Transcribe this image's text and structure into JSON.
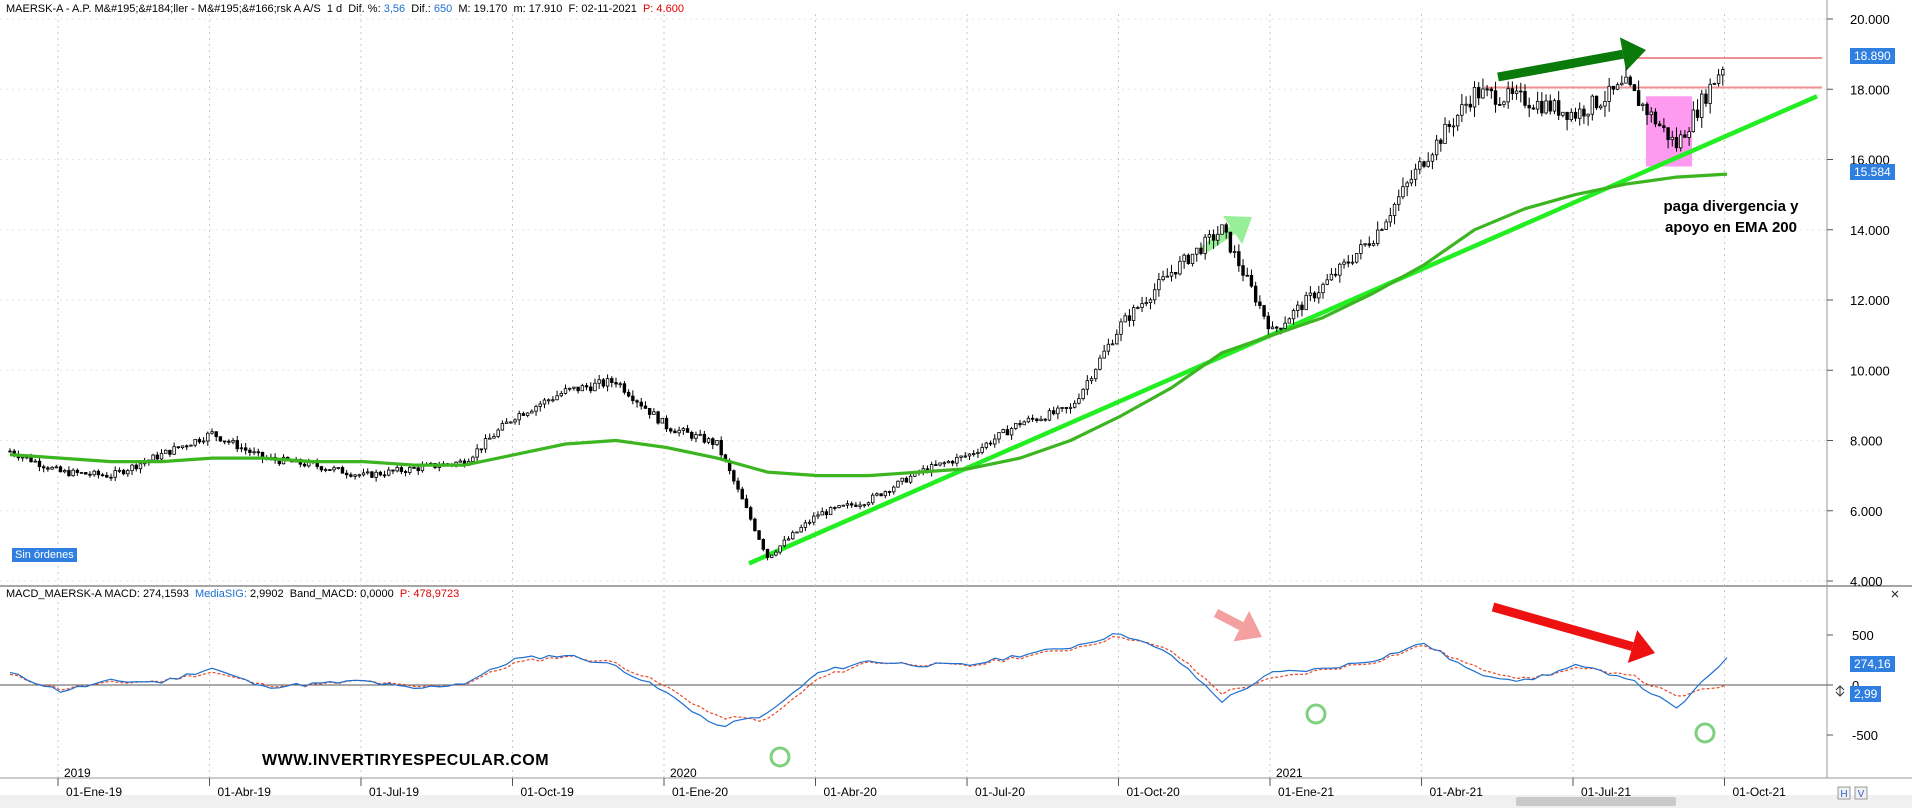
{
  "header": {
    "symbol": "MAERSK-A - A.P. M&#195;&#184;ller - M&#195;&#166;rsk A A/S",
    "interval": "1 d",
    "dif_pct_label": "Dif. %:",
    "dif_pct": "3,56",
    "dif_label": "Dif.:",
    "dif": "650",
    "max_label": "M:",
    "max": "19.170",
    "min_label": "m:",
    "min": "17.910",
    "date_label": "F:",
    "date": "02-11-2021",
    "p_label": "P:",
    "p": "4.600"
  },
  "macd_header": {
    "name": "MACD_MAERSK-A",
    "macd_label": "MACD:",
    "macd": "274,1593",
    "signal_label": "MediaSIG:",
    "signal": "2,9902",
    "band_label": "Band_MACD:",
    "band": "0,0000",
    "p_label": "P:",
    "p": "478,9723"
  },
  "price_tags": {
    "last": "18.890",
    "ema": "15.584"
  },
  "macd_tags": {
    "macd": "274,16",
    "signal": "2,99"
  },
  "status": {
    "orders": "Sin órdenes"
  },
  "annotation": {
    "line1": "paga divergencia y",
    "line2": "apoyo en EMA 200"
  },
  "watermark": "WWW.INVERTIRYESPECULAR.COM",
  "colors": {
    "price": "#000000",
    "ema": "#3cb521",
    "trend": "#22ee22",
    "resistance": "#f09090",
    "box": "#ff88ee",
    "arrow_dark": "#0a7a0a",
    "arrow_light": "#99ee99",
    "arrow_red": "#ee1111",
    "arrow_pink": "#f4a0a0",
    "macd": "#1e6fd0",
    "signal": "#e84a2a",
    "circle": "#7fd17f",
    "grid": "#c8c8c8",
    "tag_blue": "#2f7fe0"
  },
  "chart_data": [
    {
      "type": "line",
      "title": "",
      "ylim": [
        4000,
        20000
      ],
      "yticks": [
        "4.000",
        "6.000",
        "8.000",
        "10.000",
        "12.000",
        "14.000",
        "16.000",
        "18.000",
        "20.000"
      ],
      "ytick_values": [
        4000,
        6000,
        8000,
        10000,
        12000,
        14000,
        16000,
        18000,
        20000
      ],
      "x_months": [
        "2019-01",
        "2019-02",
        "2019-03",
        "2019-04",
        "2019-05",
        "2019-06",
        "2019-07",
        "2019-08",
        "2019-09",
        "2019-10",
        "2019-11",
        "2019-12",
        "2020-01",
        "2020-02",
        "2020-03",
        "2020-04",
        "2020-05",
        "2020-06",
        "2020-07",
        "2020-08",
        "2020-09",
        "2020-10",
        "2020-11",
        "2020-12",
        "2021-01",
        "2021-02",
        "2021-03",
        "2021-04",
        "2021-05",
        "2021-06",
        "2021-07",
        "2021-08",
        "2021-09",
        "2021-10",
        "2021-11"
      ],
      "xlabels": [
        "01-Ene-19",
        "01-Abr-19",
        "01-Jul-19",
        "01-Oct-19",
        "01-Ene-20",
        "01-Abr-20",
        "01-Jul-20",
        "01-Oct-20",
        "01-Ene-21",
        "01-Abr-21",
        "01-Jul-21",
        "01-Oct-21"
      ],
      "year_labels": [
        "2019",
        "2020",
        "2021"
      ],
      "series": [
        {
          "values": [
            7700,
            7100,
            7000,
            7600,
            8200,
            7500,
            7300,
            7000,
            7200,
            7400,
            8700,
            9400,
            9700,
            8400,
            7900,
            4700,
            5900,
            6300,
            7100,
            7600,
            8500,
            8900,
            11300,
            12800,
            14000,
            11100,
            12400,
            13800,
            16000,
            17900,
            17700,
            17300,
            18100,
            16400,
            18890
          ]
        },
        {
          "values": [
            7600,
            7500,
            7400,
            7400,
            7500,
            7500,
            7400,
            7400,
            7300,
            7300,
            7600,
            7900,
            8000,
            7800,
            7500,
            7100,
            7000,
            7000,
            7100,
            7200,
            7500,
            8000,
            8700,
            9500,
            10500,
            11000,
            11500,
            12200,
            13000,
            14000,
            14600,
            15000,
            15300,
            15500,
            15584
          ]
        }
      ],
      "trendline": {
        "from": [
          "2020-03",
          4500
        ],
        "to": [
          "2021-11",
          17800
        ]
      },
      "resistance_levels": [
        18890,
        18050
      ]
    },
    {
      "type": "line",
      "title": "",
      "ylim": [
        -750,
        850
      ],
      "yticks": [
        "500",
        "0",
        "-500"
      ],
      "ytick_values": [
        500,
        0,
        -500
      ],
      "series": [
        {
          "values": [
            120,
            -60,
            40,
            30,
            170,
            -20,
            10,
            40,
            -40,
            20,
            260,
            300,
            190,
            -80,
            -420,
            -290,
            120,
            240,
            200,
            200,
            300,
            380,
            520,
            300,
            -160,
            120,
            160,
            250,
            420,
            120,
            40,
            190,
            80,
            -240,
            274
          ]
        },
        {
          "values": [
            100,
            -40,
            20,
            40,
            130,
            0,
            0,
            40,
            -20,
            10,
            220,
            290,
            220,
            -20,
            -320,
            -350,
            60,
            230,
            210,
            190,
            280,
            360,
            490,
            340,
            -80,
            60,
            150,
            230,
            400,
            180,
            60,
            160,
            120,
            -120,
            3
          ]
        }
      ]
    }
  ]
}
